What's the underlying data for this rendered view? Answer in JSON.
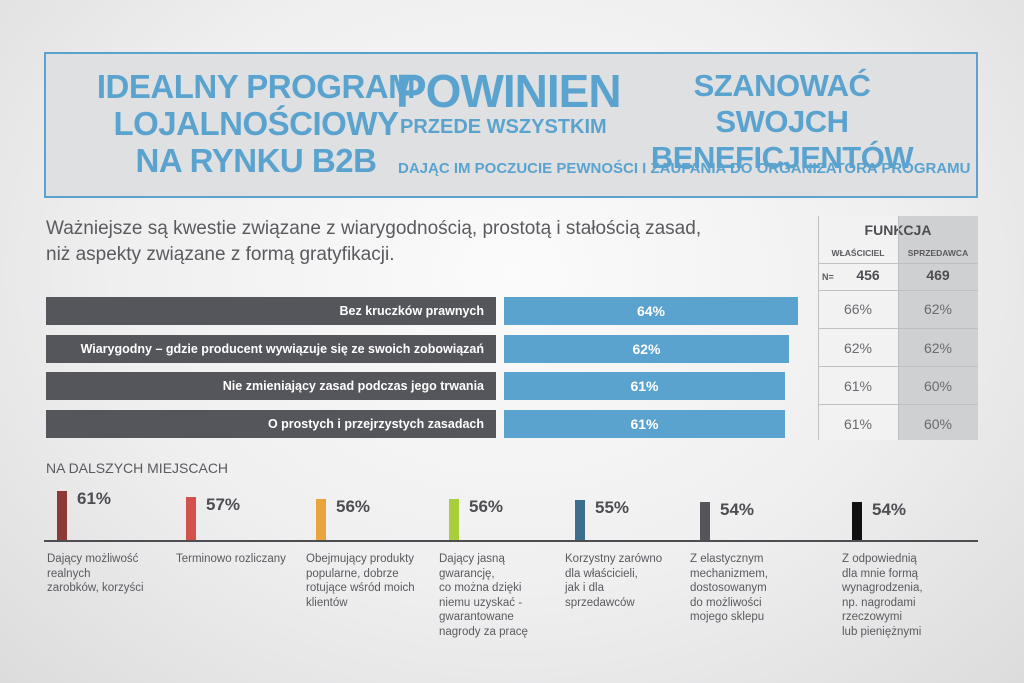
{
  "banner": {
    "left_lines": [
      "IDEALNY PROGRAM",
      "LOJALNOŚCIOWY",
      "NA RYNKU B2B"
    ],
    "mid_big": "POWINIEN",
    "mid_small": "PRZEDE WSZYSTKIM",
    "right_lines": [
      "SZANOWAĆ SWOJCH",
      "BENEFICJENTÓW"
    ],
    "subtitle": "DAJĄC IM POCZUCIE PEWNOŚCI I ZAUFANIA DO ORGANIZATORA PROGRAMU",
    "accent_color": "#5ba3cf"
  },
  "intro": {
    "line1": "Ważniejsze są kwestie związane z wiarygodnością, prostotą i stałością zasad,",
    "line2": "niż aspekty związane z formą gratyfikacji."
  },
  "table": {
    "title": "FUNKCJA",
    "col1_header": "WŁAŚCICIEL",
    "col2_header": "SPRZEDAWCA",
    "n_label": "N=",
    "n_col1": "456",
    "n_col2": "469",
    "rows": [
      {
        "c1": "66%",
        "c2": "62%"
      },
      {
        "c1": "62%",
        "c2": "62%"
      },
      {
        "c1": "61%",
        "c2": "60%"
      },
      {
        "c1": "61%",
        "c2": "60%"
      }
    ]
  },
  "chart_data": [
    {
      "type": "bar",
      "orientation": "horizontal",
      "categories": [
        "Bez kruczków prawnych",
        "Wiarygodny – gdzie producent wywiązuje się ze swoich zobowiązań",
        "Nie zmieniający zasad podczas jego trwania",
        "O prostych i przejrzystych zasadach"
      ],
      "values": [
        64,
        62,
        61,
        61
      ],
      "labels": [
        "64%",
        "62%",
        "61%",
        "61%"
      ],
      "color": "#5ba3cf",
      "xlim": [
        0,
        100
      ]
    },
    {
      "type": "bar",
      "title": "NA DALSZYCH MIEJSCACH",
      "categories": [
        "Dający możliwość realnych zarobków, korzyści",
        "Terminowo rozliczany",
        "Obejmujący produkty popularne, dobrze rotujące wśród moich klientów",
        "Dający jasną gwarancję, co można dzięki niemu uzyskać - gwarantowane nagrody za pracę",
        "Korzystny zarówno dla właścicieli, jak i dla sprzedawców",
        "Z elastycznym mechanizmem, dostosowanym do możliwości mojego sklepu",
        "Z odpowiednią dla mnie formą wynagrodzenia, np. nagrodami rzeczowymi lub pieniężnymi"
      ],
      "values": [
        61,
        57,
        56,
        56,
        55,
        54,
        54
      ],
      "labels": [
        "61%",
        "57%",
        "56%",
        "56%",
        "55%",
        "54%",
        "54%"
      ],
      "desc_lines": [
        [
          "Dający możliwość",
          "realnych",
          "zarobków, korzyści"
        ],
        [
          "Terminowo rozliczany"
        ],
        [
          "Obejmujący produkty",
          "popularne, dobrze",
          "rotujące wśród moich",
          "klientów"
        ],
        [
          "Dający jasną",
          "gwarancję,",
          "co można dzięki",
          "niemu uzyskać -",
          "gwarantowane",
          "nagrody za pracę"
        ],
        [
          "Korzystny zarówno",
          "dla właścicieli,",
          "jak i dla",
          "sprzedawców"
        ],
        [
          "Z elastycznym",
          "mechanizmem,",
          "dostosowanym",
          "do możliwości",
          "mojego sklepu"
        ],
        [
          "Z odpowiednią",
          "dla mnie formą",
          "wynagrodzenia,",
          "np. nagrodami",
          "rzeczowymi",
          "lub pieniężnymi"
        ]
      ],
      "colors": [
        "#8b3a35",
        "#d2524b",
        "#e9a43c",
        "#a7cf3b",
        "#3e6e8e",
        "#55565c",
        "#111111"
      ]
    }
  ]
}
